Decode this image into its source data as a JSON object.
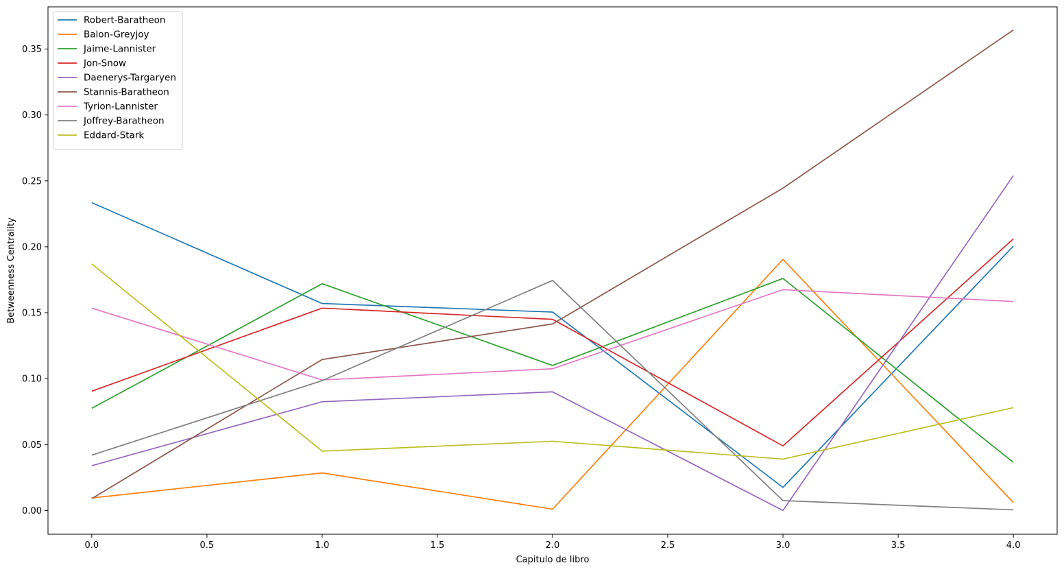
{
  "chart_data": {
    "type": "line",
    "title": "",
    "xlabel": "Capitulo de libro",
    "ylabel": "Betweenness Centrality",
    "x": [
      0,
      1,
      2,
      3,
      4
    ],
    "xlim": [
      -0.19,
      4.19
    ],
    "ylim": [
      -0.018,
      0.382
    ],
    "xticks": [
      0.0,
      0.5,
      1.0,
      1.5,
      2.0,
      2.5,
      3.0,
      3.5,
      4.0
    ],
    "xtick_labels": [
      "0.0",
      "0.5",
      "1.0",
      "1.5",
      "2.0",
      "2.5",
      "3.0",
      "3.5",
      "4.0"
    ],
    "yticks": [
      0.0,
      0.05,
      0.1,
      0.15,
      0.2,
      0.25,
      0.3,
      0.35
    ],
    "ytick_labels": [
      "0.00",
      "0.05",
      "0.10",
      "0.15",
      "0.20",
      "0.25",
      "0.30",
      "0.35"
    ],
    "grid": false,
    "legend_position": "top-left",
    "series": [
      {
        "name": "Robert-Baratheon",
        "color": "#1f77b4",
        "values": [
          0.2335,
          0.157,
          0.1505,
          0.0175,
          0.2005
        ]
      },
      {
        "name": "Balon-Greyjoy",
        "color": "#ff7f0e",
        "values": [
          0.0095,
          0.0285,
          0.001,
          0.1905,
          0.006
        ]
      },
      {
        "name": "Jaime-Lannister",
        "color": "#2ca02c",
        "values": [
          0.0775,
          0.172,
          0.11,
          0.176,
          0.0365
        ]
      },
      {
        "name": "Jon-Snow",
        "color": "#d62728",
        "values": [
          0.0905,
          0.1535,
          0.145,
          0.049,
          0.206
        ]
      },
      {
        "name": "Daenerys-Targaryen",
        "color": "#9467bd",
        "values": [
          0.034,
          0.0825,
          0.09,
          0.0,
          0.254
        ]
      },
      {
        "name": "Stannis-Baratheon",
        "color": "#8c564b",
        "values": [
          0.009,
          0.1145,
          0.1415,
          0.2445,
          0.3645
        ]
      },
      {
        "name": "Tyrion-Lannister",
        "color": "#e377c2",
        "values": [
          0.1535,
          0.099,
          0.1075,
          0.1675,
          0.1585
        ]
      },
      {
        "name": "Joffrey-Baratheon",
        "color": "#7f7f7f",
        "values": [
          0.042,
          0.0985,
          0.1745,
          0.0075,
          0.0005
        ]
      },
      {
        "name": "Eddard-Stark",
        "color": "#bcbd22",
        "values": [
          0.187,
          0.045,
          0.0525,
          0.039,
          0.078
        ]
      }
    ]
  }
}
